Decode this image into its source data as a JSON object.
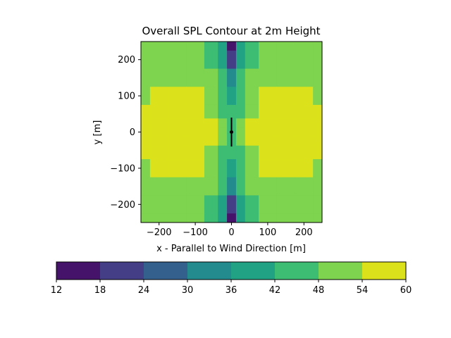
{
  "chart_data": {
    "type": "heatmap",
    "subtype": "filled-contour",
    "title": "Overall SPL Contour at 2m Height",
    "xlabel": "x - Parallel to Wind Direction [m]",
    "ylabel": "y [m]",
    "xlim": [
      -250,
      250
    ],
    "ylim": [
      -250,
      250
    ],
    "xticks": [
      -200,
      -100,
      0,
      100,
      200
    ],
    "yticks": [
      -200,
      -100,
      0,
      100,
      200
    ],
    "xtick_labels": [
      "−200",
      "−100",
      "0",
      "100",
      "200"
    ],
    "ytick_labels": [
      "−200",
      "−100",
      "0",
      "100",
      "200"
    ],
    "grid": false,
    "colormap": "viridis",
    "colorbar": {
      "orientation": "horizontal",
      "placement": "bottom",
      "levels": [
        12,
        18,
        24,
        30,
        36,
        42,
        48,
        54,
        60
      ],
      "level_labels": [
        "12",
        "18",
        "24",
        "30",
        "36",
        "42",
        "48",
        "54",
        "60"
      ],
      "colors": [
        "#46136a",
        "#433e85",
        "#33608d",
        "#238a8d",
        "#21a285",
        "#3dbc74",
        "#7ed34f",
        "#dbe21b"
      ]
    },
    "field": {
      "x": [
        -250,
        -200,
        -150,
        -100,
        -50,
        -25,
        0,
        25,
        50,
        100,
        150,
        200,
        250
      ],
      "y": [
        250,
        200,
        150,
        100,
        50,
        25,
        0,
        -25,
        -50,
        -100,
        -150,
        -200,
        -250
      ],
      "spl_band_index": [
        [
          6,
          6,
          6,
          6,
          5,
          4,
          0,
          4,
          5,
          6,
          6,
          6,
          6
        ],
        [
          6,
          6,
          6,
          6,
          5,
          4,
          1,
          4,
          5,
          6,
          6,
          6,
          6
        ],
        [
          6,
          6,
          6,
          6,
          6,
          5,
          3,
          5,
          6,
          6,
          6,
          6,
          6
        ],
        [
          6,
          7,
          7,
          7,
          6,
          5,
          4,
          5,
          6,
          7,
          7,
          7,
          6
        ],
        [
          7,
          7,
          7,
          7,
          6,
          5,
          5,
          5,
          6,
          7,
          7,
          7,
          7
        ],
        [
          7,
          7,
          7,
          7,
          7,
          6,
          5,
          6,
          7,
          7,
          7,
          7,
          7
        ],
        [
          7,
          7,
          7,
          7,
          7,
          6,
          5,
          6,
          7,
          7,
          7,
          7,
          7
        ],
        [
          7,
          7,
          7,
          7,
          7,
          6,
          5,
          6,
          7,
          7,
          7,
          7,
          7
        ],
        [
          7,
          7,
          7,
          7,
          6,
          5,
          5,
          5,
          6,
          7,
          7,
          7,
          7
        ],
        [
          6,
          7,
          7,
          7,
          6,
          5,
          4,
          5,
          6,
          7,
          7,
          7,
          6
        ],
        [
          6,
          6,
          6,
          6,
          6,
          5,
          3,
          5,
          6,
          6,
          6,
          6,
          6
        ],
        [
          6,
          6,
          6,
          6,
          5,
          4,
          1,
          4,
          5,
          6,
          6,
          6,
          6
        ],
        [
          6,
          6,
          6,
          6,
          5,
          4,
          0,
          4,
          5,
          6,
          6,
          6,
          6
        ]
      ]
    },
    "turbine": {
      "hub": [
        0,
        0
      ],
      "rotor_y_extent": [
        -40,
        40
      ],
      "color": "#000000"
    }
  }
}
